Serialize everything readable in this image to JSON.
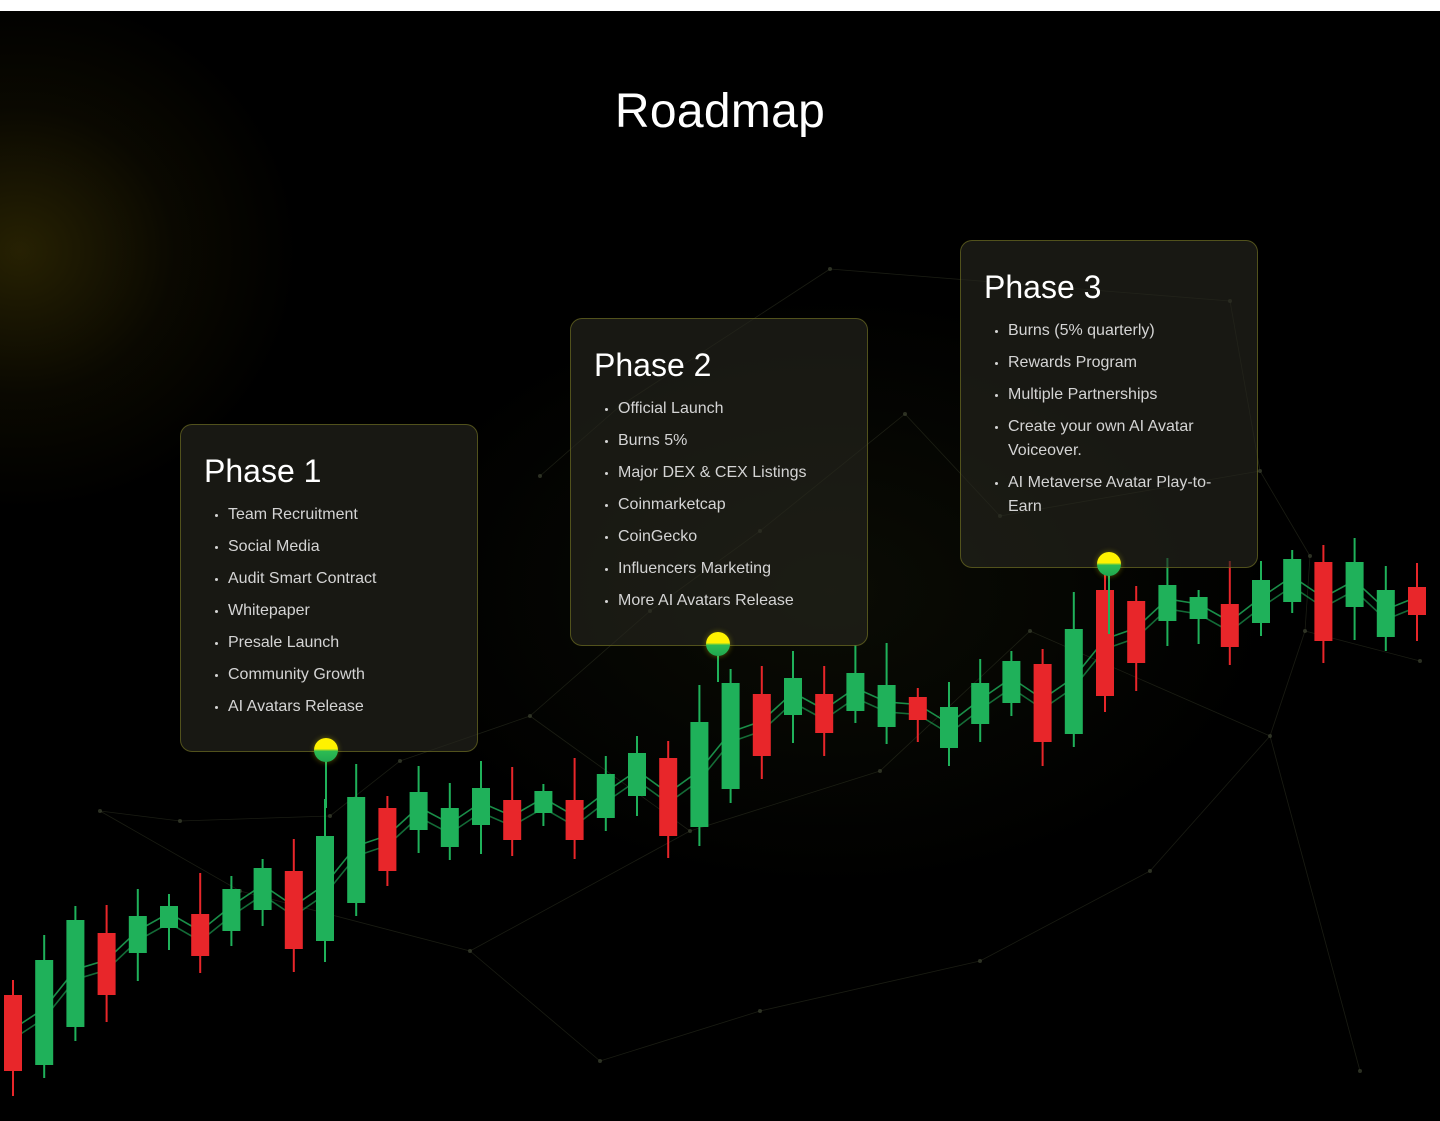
{
  "title": "Roadmap",
  "phases": [
    {
      "title": "Phase 1",
      "items": [
        "Team Recruitment",
        "Social Media",
        "Audit Smart Contract",
        "Whitepaper",
        "Presale Launch",
        "Community Growth",
        "AI Avatars Release"
      ]
    },
    {
      "title": "Phase 2",
      "items": [
        "Official Launch",
        "Burns 5%",
        "Major DEX & CEX Listings",
        "Coinmarketcap",
        "CoinGecko",
        "Influencers Marketing",
        "More AI Avatars Release"
      ]
    },
    {
      "title": "Phase 3",
      "items": [
        "Burns (5% quarterly)",
        "Rewards Program",
        "Multiple Partnerships",
        "Create your own AI Avatar Voiceover.",
        "AI Metaverse Avatar Play-to-Earn"
      ]
    }
  ],
  "colors": {
    "background": "#000000",
    "bullish": "#1fb15a",
    "bearish": "#e8262a",
    "marker_top": "#fff200",
    "card_border": "#8a8a2a"
  },
  "candlestick_chart": {
    "direction": "rising",
    "candle_colors": [
      "bearish",
      "bullish",
      "bullish",
      "bearish",
      "bullish",
      "bullish",
      "bearish",
      "bullish",
      "bullish",
      "bearish",
      "bullish",
      "bullish",
      "bearish",
      "bullish",
      "bullish",
      "bullish",
      "bearish",
      "bullish",
      "bearish",
      "bullish",
      "bullish",
      "bearish",
      "bullish",
      "bullish",
      "bearish",
      "bullish",
      "bearish",
      "bullish",
      "bullish",
      "bearish",
      "bullish",
      "bullish",
      "bullish",
      "bearish",
      "bullish",
      "bearish",
      "bearish",
      "bullish",
      "bullish",
      "bearish",
      "bullish",
      "bullish",
      "bearish",
      "bullish",
      "bullish",
      "bearish"
    ]
  }
}
